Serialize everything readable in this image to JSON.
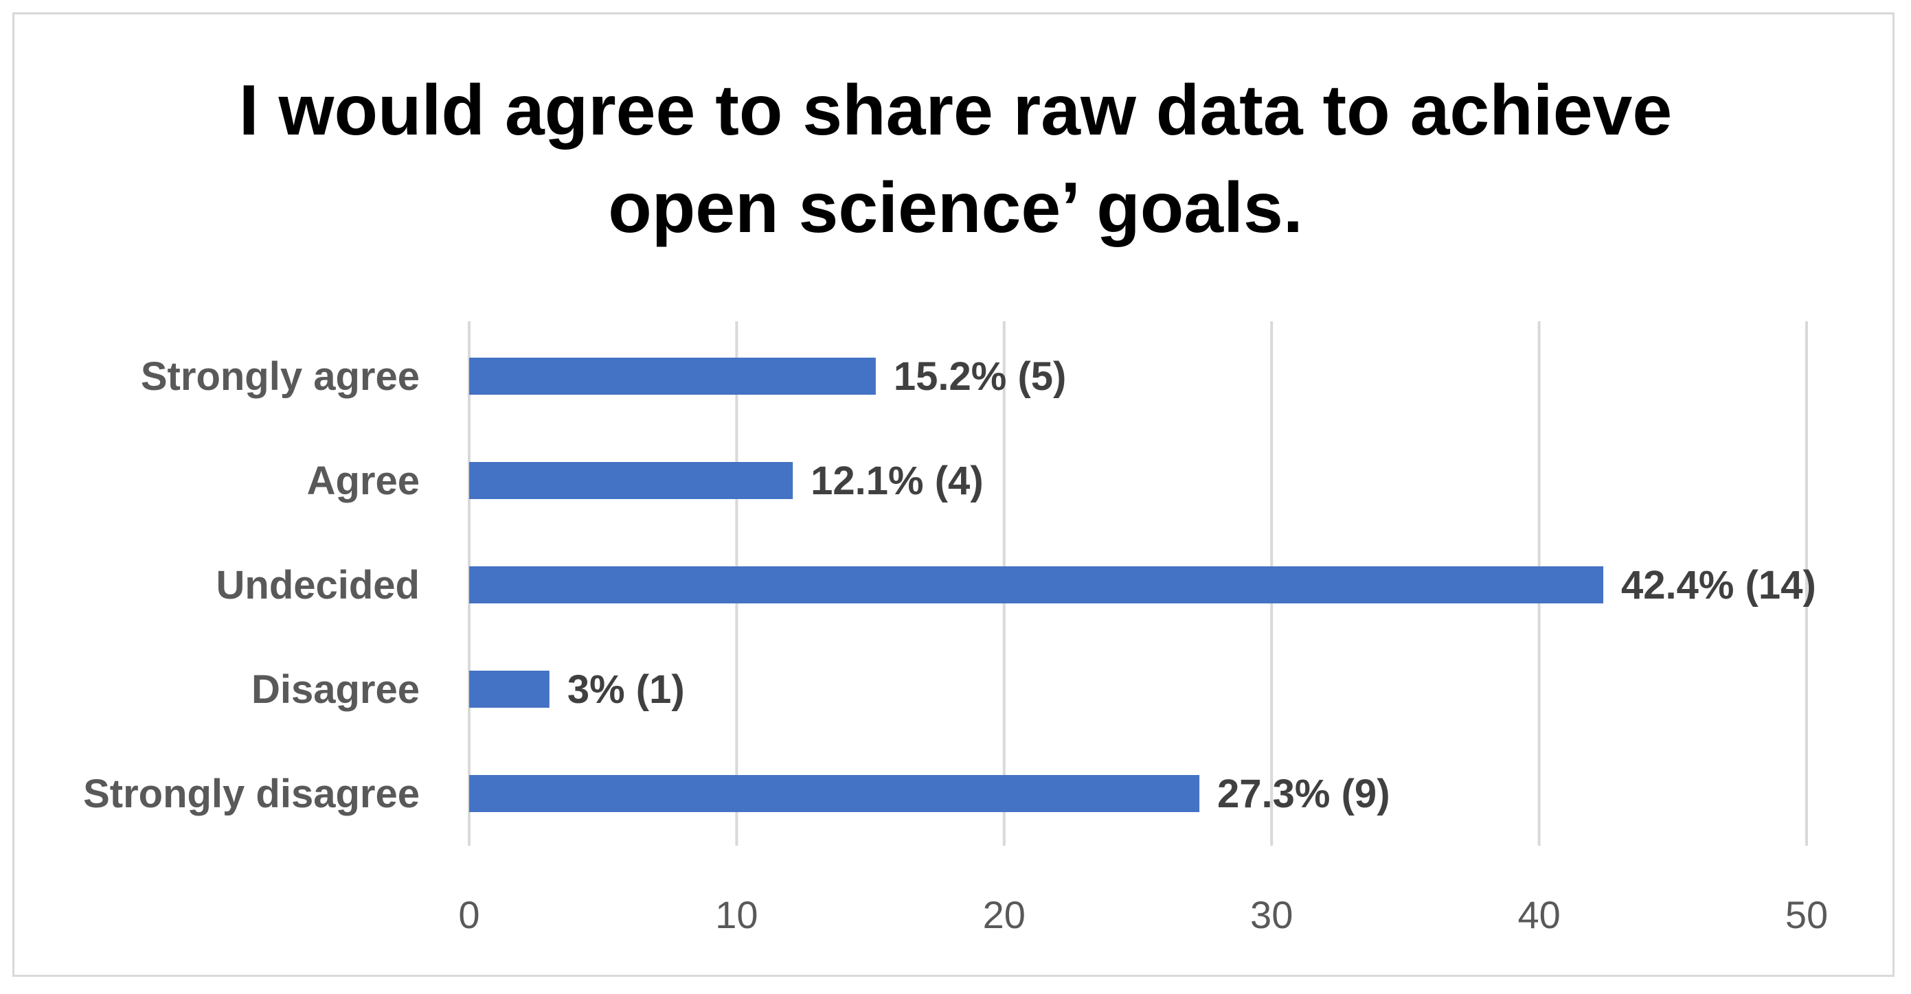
{
  "chart_data": {
    "type": "bar",
    "orientation": "horizontal",
    "title": "I would agree to share raw data to achieve\nopen science’ goals.",
    "categories": [
      "Strongly agree",
      "Agree",
      "Undecided",
      "Disagree",
      "Strongly disagree"
    ],
    "values": [
      15.2,
      12.1,
      42.4,
      3,
      27.3
    ],
    "data_labels": [
      "15.2% (5)",
      "12.1% (4)",
      "42.4% (14)",
      "3% (1)",
      "27.3% (9)"
    ],
    "xticks": [
      0,
      10,
      20,
      30,
      40,
      50
    ],
    "xlim": [
      0,
      50
    ],
    "xlabel": "",
    "ylabel": "",
    "grid": true,
    "legend": false,
    "colors": {
      "bar": "#4472c4",
      "grid": "#d9d9d9",
      "frame": "#d9d9d9"
    }
  }
}
